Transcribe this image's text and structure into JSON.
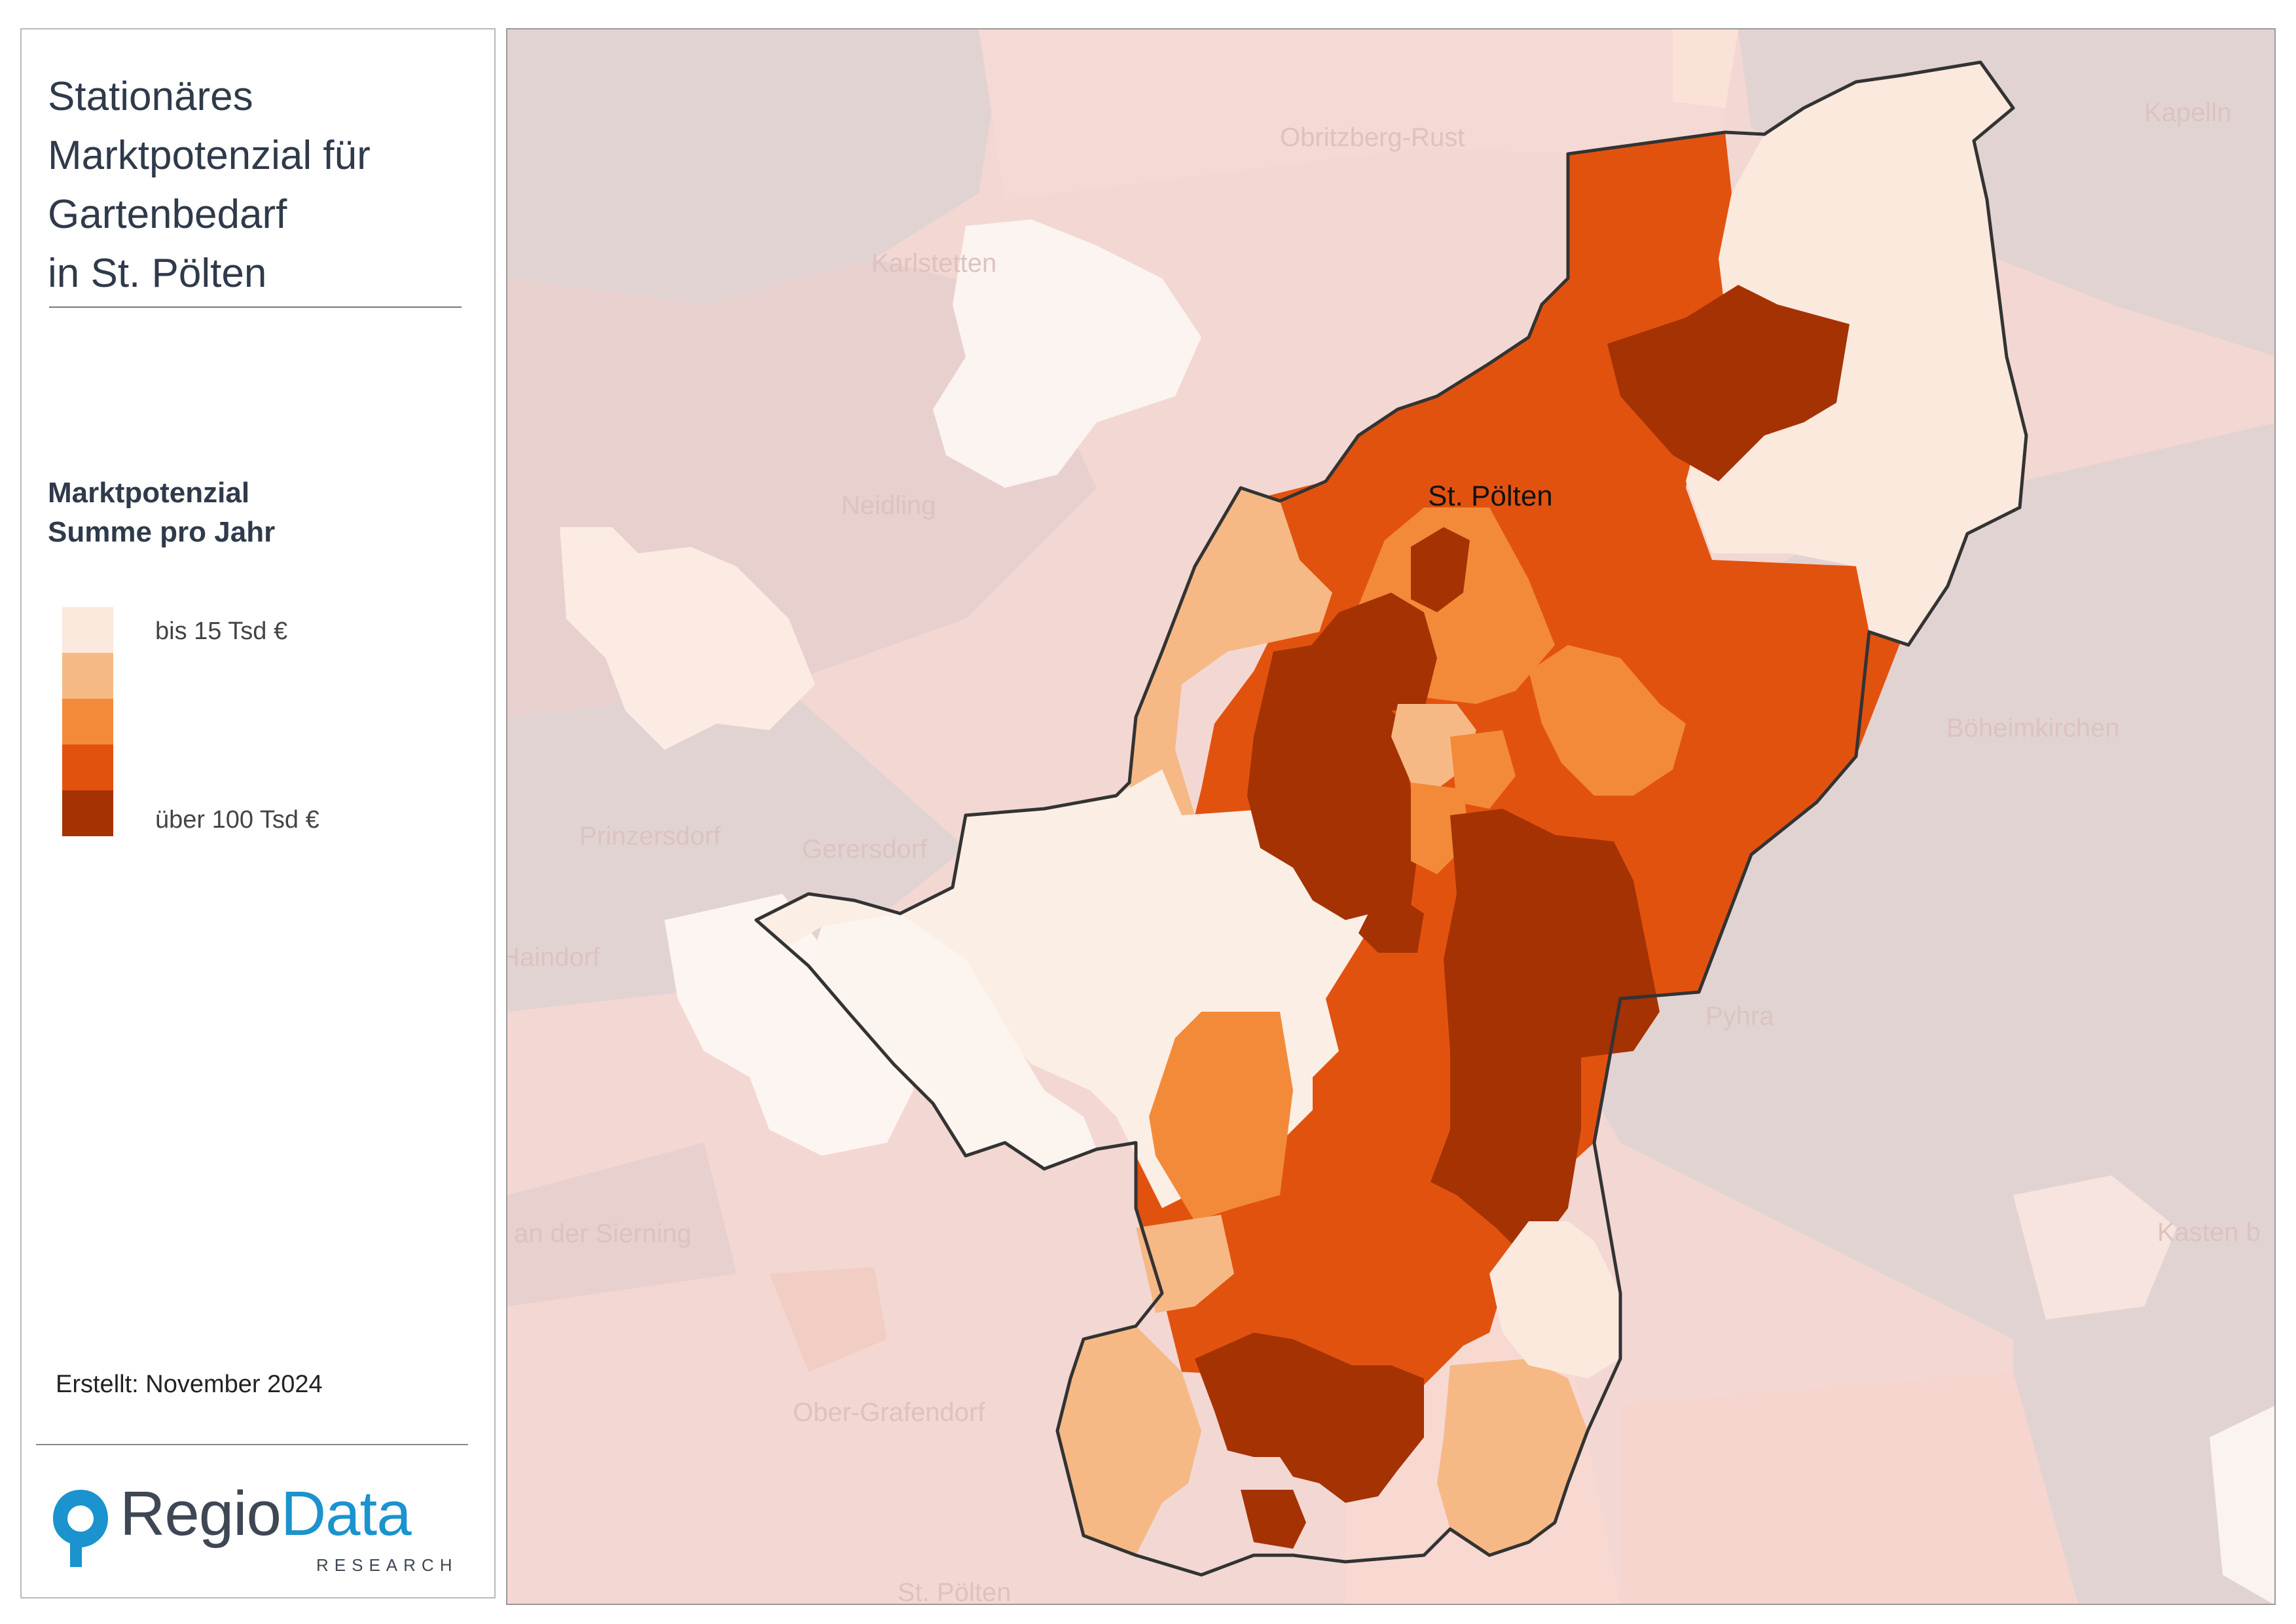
{
  "title": "Stationäres\nMarktpotenzial für\nGartenbedarf\nin St. Pölten",
  "legend": {
    "title": "Marktpotenzial\nSumme pro Jahr",
    "classes": [
      {
        "color": "#fbe9dd",
        "label": "bis 15 Tsd €"
      },
      {
        "color": "#f6b985",
        "label": ""
      },
      {
        "color": "#f38a3a",
        "label": ""
      },
      {
        "color": "#e2520f",
        "label": ""
      },
      {
        "color": "#a53202",
        "label": "über 100 Tsd €"
      }
    ]
  },
  "created": "Erstellt: November 2024",
  "logo": {
    "word_a": "Regio",
    "word_b": "Data",
    "sub": "RESEARCH"
  },
  "map": {
    "city_label": "St. Pölten",
    "surrounding_municipalities": [
      "Obritzberg-Rust",
      "Kapelln",
      "Karlstetten",
      "Neidling",
      "Böheimkirchen",
      "Prinzersdorf",
      "Gerersdorf",
      "Haindorf",
      "Pyhra",
      "an der Sierning",
      "Kasten b",
      "Ober-Grafendorf",
      "St. Pölten"
    ]
  }
}
